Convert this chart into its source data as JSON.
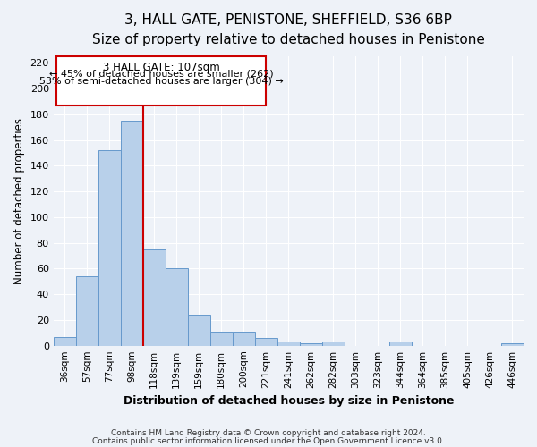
{
  "title": "3, HALL GATE, PENISTONE, SHEFFIELD, S36 6BP",
  "subtitle": "Size of property relative to detached houses in Penistone",
  "xlabel": "Distribution of detached houses by size in Penistone",
  "ylabel": "Number of detached properties",
  "bar_labels": [
    "36sqm",
    "57sqm",
    "77sqm",
    "98sqm",
    "118sqm",
    "139sqm",
    "159sqm",
    "180sqm",
    "200sqm",
    "221sqm",
    "241sqm",
    "262sqm",
    "282sqm",
    "303sqm",
    "323sqm",
    "344sqm",
    "364sqm",
    "385sqm",
    "405sqm",
    "426sqm",
    "446sqm"
  ],
  "bar_values": [
    7,
    54,
    152,
    175,
    75,
    60,
    24,
    11,
    11,
    6,
    3,
    2,
    3,
    0,
    0,
    3,
    0,
    0,
    0,
    0,
    2
  ],
  "bar_color": "#b8d0ea",
  "bar_edge_color": "#6699cc",
  "ylim": [
    0,
    225
  ],
  "yticks": [
    0,
    20,
    40,
    60,
    80,
    100,
    120,
    140,
    160,
    180,
    200,
    220
  ],
  "vline_x": 3.5,
  "vline_color": "#cc0000",
  "annotation_title": "3 HALL GATE: 107sqm",
  "annotation_line1": "← 45% of detached houses are smaller (262)",
  "annotation_line2": "53% of semi-detached houses are larger (304) →",
  "annotation_box_color": "#cc0000",
  "footer_line1": "Contains HM Land Registry data © Crown copyright and database right 2024.",
  "footer_line2": "Contains public sector information licensed under the Open Government Licence v3.0.",
  "background_color": "#eef2f8",
  "plot_bg_color": "#eef2f8",
  "grid_color": "#ffffff",
  "title_fontsize": 11,
  "subtitle_fontsize": 9
}
